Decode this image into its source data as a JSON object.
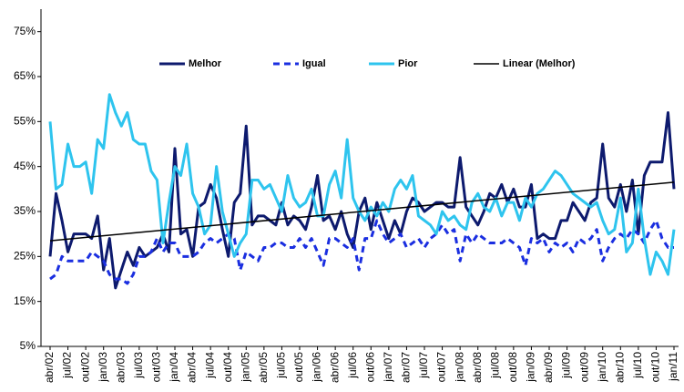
{
  "chart_data": {
    "type": "line",
    "categories": [
      "abr/02",
      null,
      null,
      "jul/02",
      null,
      null,
      "out/02",
      null,
      null,
      "jan/03",
      null,
      null,
      "abr/03",
      null,
      null,
      "jul/03",
      null,
      null,
      "out/03",
      null,
      null,
      "jan/04",
      null,
      null,
      "abr/04",
      null,
      null,
      "jul/04",
      null,
      null,
      "out/04",
      null,
      null,
      "jan/05",
      null,
      null,
      "abr/05",
      null,
      null,
      "jul/05",
      null,
      null,
      "out/05",
      null,
      null,
      "jan/06",
      null,
      null,
      "abr/06",
      null,
      null,
      "jul/06",
      null,
      null,
      "out/06",
      null,
      null,
      "jan/07",
      null,
      null,
      "abr/07",
      null,
      null,
      "jul/07",
      null,
      null,
      "out/07",
      null,
      null,
      "jan/08",
      null,
      null,
      "abr/08",
      null,
      null,
      "jul/08",
      null,
      null,
      "out/08",
      null,
      null,
      "jan/09",
      null,
      null,
      "abr/09",
      null,
      null,
      "jul/09",
      null,
      null,
      "out/09",
      null,
      null,
      "jan/10",
      null,
      null,
      "abr/10",
      null,
      null,
      "jul/10",
      null,
      null,
      "out/10",
      null,
      null,
      "jan/11"
    ],
    "series": [
      {
        "name": "Melhor",
        "color": "#0d1a6e",
        "style": "solid",
        "values": [
          25,
          39,
          33,
          26,
          30,
          30,
          30,
          29,
          34,
          22,
          29,
          18,
          22,
          26,
          23,
          27,
          25,
          26,
          27,
          30,
          26,
          49,
          30,
          31,
          25,
          36,
          37,
          41,
          38,
          31,
          25,
          37,
          39,
          54,
          32,
          34,
          34,
          33,
          32,
          37,
          32,
          34,
          33,
          31,
          36,
          43,
          33,
          34,
          31,
          35,
          30,
          27,
          35,
          38,
          31,
          37,
          33,
          29,
          33,
          30,
          35,
          38,
          37,
          35,
          36,
          37,
          37,
          36,
          36,
          47,
          36,
          34,
          32,
          35,
          39,
          38,
          41,
          37,
          40,
          36,
          36,
          41,
          29,
          30,
          29,
          29,
          33,
          33,
          37,
          35,
          33,
          37,
          38,
          50,
          38,
          36,
          41,
          35,
          42,
          30,
          43,
          46,
          46,
          46,
          57,
          40
        ]
      },
      {
        "name": "Igual",
        "color": "#1a2ee0",
        "style": "dashed",
        "values": [
          20,
          21,
          25,
          24,
          24,
          24,
          24,
          26,
          25,
          24,
          21,
          20,
          20,
          19,
          21,
          25,
          25,
          26,
          29,
          26,
          28,
          28,
          25,
          25,
          25,
          26,
          28,
          29,
          28,
          29,
          30,
          29,
          22,
          26,
          25,
          24,
          27,
          27,
          28,
          28,
          27,
          27,
          29,
          27,
          29,
          26,
          23,
          29,
          29,
          28,
          27,
          29,
          22,
          29,
          29,
          33,
          30,
          28,
          29,
          30,
          27,
          28,
          29,
          27,
          29,
          30,
          32,
          30,
          31,
          24,
          30,
          28,
          30,
          29,
          28,
          28,
          28,
          29,
          28,
          27,
          23,
          29,
          28,
          29,
          26,
          28,
          27,
          28,
          26,
          29,
          28,
          29,
          31,
          24,
          27,
          29,
          30,
          29,
          31,
          30,
          28,
          31,
          33,
          29,
          27,
          27
        ]
      },
      {
        "name": "Pior",
        "color": "#2ec4ee",
        "style": "solid",
        "values": [
          55,
          40,
          41,
          50,
          45,
          45,
          46,
          39,
          51,
          49,
          61,
          57,
          54,
          57,
          51,
          50,
          50,
          44,
          42,
          28,
          37,
          45,
          43,
          50,
          39,
          36,
          30,
          32,
          45,
          35,
          30,
          25,
          28,
          30,
          42,
          42,
          40,
          41,
          38,
          35,
          43,
          38,
          36,
          37,
          40,
          34,
          34,
          41,
          44,
          38,
          51,
          38,
          35,
          33,
          36,
          34,
          37,
          35,
          40,
          42,
          40,
          43,
          34,
          33,
          32,
          30,
          35,
          33,
          34,
          32,
          31,
          37,
          39,
          36,
          35,
          38,
          34,
          37,
          37,
          33,
          38,
          36,
          39,
          40,
          42,
          44,
          43,
          41,
          39,
          38,
          37,
          36,
          37,
          33,
          30,
          31,
          38,
          26,
          28,
          40,
          29,
          21,
          26,
          24,
          21,
          31
        ]
      }
    ],
    "trendline": {
      "name": "Linear (Melhor)",
      "color": "#000000",
      "values": [
        28.5,
        41.5
      ]
    },
    "ylim": [
      5,
      80
    ],
    "yticks": [
      {
        "value": 5,
        "label": "5%"
      },
      {
        "value": 15,
        "label": "15%"
      },
      {
        "value": 25,
        "label": "25%"
      },
      {
        "value": 35,
        "label": "35%"
      },
      {
        "value": 45,
        "label": "45%"
      },
      {
        "value": 55,
        "label": "55%"
      },
      {
        "value": 65,
        "label": "65%"
      },
      {
        "value": 75,
        "label": "75%"
      }
    ],
    "grid": false,
    "legend": "top"
  }
}
